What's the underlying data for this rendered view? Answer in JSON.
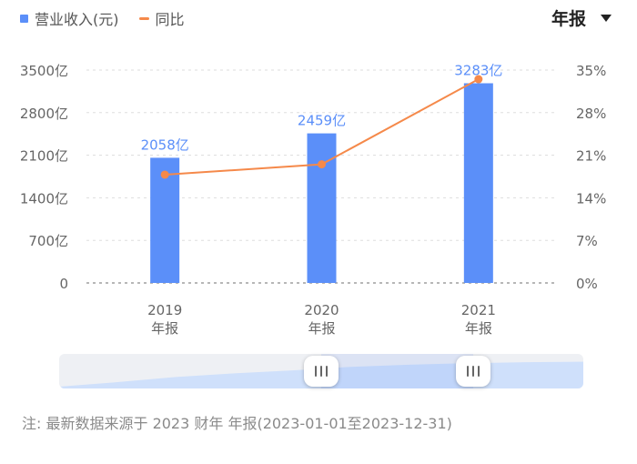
{
  "legend": {
    "bar_label": "营业收入(元)",
    "line_label": "同比"
  },
  "period_selector": {
    "label": "年报"
  },
  "colors": {
    "bar": "#5b8ff9",
    "line": "#f5894a",
    "axis_text": "#666666",
    "grid": "#dddddd",
    "slider_fill": "#cfe0fb"
  },
  "chart_data": {
    "type": "bar",
    "categories": [
      [
        "2019",
        "年报"
      ],
      [
        "2020",
        "年报"
      ],
      [
        "2021",
        "年报"
      ]
    ],
    "series": [
      {
        "name": "营业收入(元)",
        "type": "bar",
        "axis": "left",
        "values": [
          2058,
          2459,
          3283
        ],
        "labels": [
          "2058亿",
          "2459亿",
          "3283亿"
        ]
      },
      {
        "name": "同比",
        "type": "line",
        "axis": "right",
        "values": [
          17.8,
          19.5,
          33.5
        ]
      }
    ],
    "y_left": {
      "ticks": [
        0,
        700,
        1400,
        2100,
        2800,
        3500
      ],
      "tick_labels": [
        "0",
        "700亿",
        "1400亿",
        "2100亿",
        "2800亿",
        "3500亿"
      ],
      "ylim": [
        0,
        3500
      ]
    },
    "y_right": {
      "ticks": [
        0,
        7,
        14,
        21,
        28,
        35
      ],
      "tick_labels": [
        "0%",
        "7%",
        "14%",
        "21%",
        "28%",
        "35%"
      ],
      "ylim": [
        0,
        35
      ]
    },
    "grid": true,
    "legend_position": "top-left"
  },
  "range_slider": {
    "start": 0.5,
    "end": 0.79,
    "overview": [
      0.0,
      0.18,
      0.38,
      0.52,
      0.64,
      0.78,
      0.86,
      0.92,
      0.96,
      0.98
    ]
  },
  "note": "注: 最新数据来源于 2023 财年 年报(2023-01-01至2023-12-31)"
}
